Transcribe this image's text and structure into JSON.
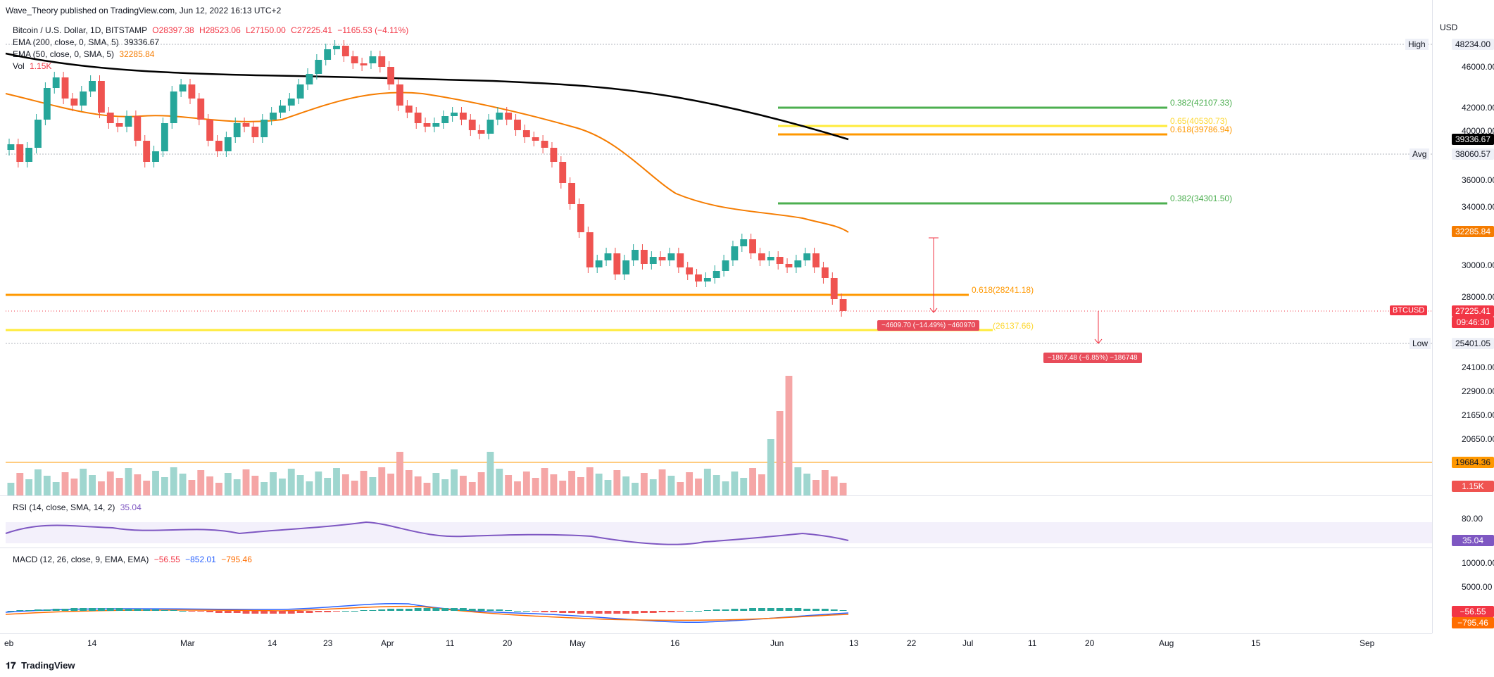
{
  "header": {
    "published": "Wave_Theory published on TradingView.com, Jun 12, 2022 16:13 UTC+2"
  },
  "legend": {
    "symbol": "Bitcoin / U.S. Dollar, 1D, BITSTAMP",
    "o": "O28397.38",
    "h": "H28523.06",
    "l": "L27150.00",
    "c": "C27225.41",
    "chg": "−1165.53 (−4.11%)",
    "ema200_label": "EMA (200, close, 0, SMA, 5)",
    "ema200_value": "39336.67",
    "ema50_label": "EMA (50, close, 0, SMA, 5)",
    "ema50_value": "32285.84",
    "vol_label": "Vol",
    "vol_value": "1.15K"
  },
  "rsi": {
    "label": "RSI (14, close, SMA, 14, 2)",
    "value": "35.04",
    "level_80": "80.00"
  },
  "macd": {
    "label": "MACD (12, 26, close, 9, EMA, EMA)",
    "v1": "−56.55",
    "v2": "−852.01",
    "v3": "−795.46",
    "tick_10000": "10000.00",
    "tick_5000": "5000.00"
  },
  "price_axis": {
    "currency": "USD",
    "ticks": [
      "46000.00",
      "42000.00",
      "40000.00",
      "36000.00",
      "34000.00",
      "30000.00",
      "28000.00",
      "24100.00",
      "22900.00",
      "21650.00",
      "20650.00"
    ],
    "high_label": "High",
    "high_value": "48234.00",
    "avg_label": "Avg",
    "avg_value": "38060.57",
    "low_label": "Low",
    "low_value": "25401.05",
    "ema200_tag": "39336.67",
    "ema50_tag": "32285.84",
    "symbol_tag": "BTCUSD",
    "last_price": "27225.41",
    "countdown": "09:46:30",
    "vol_line_value": "19684.36",
    "vol_tag": "1.15K",
    "rsi_tag": "35.04",
    "macd_tag1": "−56.55",
    "macd_tag2": "−795.46"
  },
  "time_axis": [
    "eb",
    "14",
    "Mar",
    "14",
    "23",
    "Apr",
    "11",
    "20",
    "May",
    "16",
    "Jun",
    "13",
    "22",
    "Jul",
    "11",
    "20",
    "Aug",
    "15",
    "Sep"
  ],
  "annotations": {
    "fib_382_top": "0.382(42107.33)",
    "fib_65": "0.65(40530.73)",
    "fib_618_top": "0.618(39786.94)",
    "fib_382_mid": "0.382(34301.50)",
    "fib_618_mid": "0.618(28241.18)",
    "fib_yellow_low": "(26137.66)",
    "measure1": "−4609.70 (−14.49%) −460970",
    "measure2": "−1867.48 (−6.85%) −186748"
  },
  "footer": {
    "brand": "TradingView"
  },
  "colors": {
    "up": "#26a69a",
    "down": "#ef5350",
    "ema50": "#f57c00",
    "ema200": "#000000",
    "fib_green": "#4caf50",
    "fib_orange": "#ff9800",
    "fib_yellow": "#ffeb3b",
    "rsi": "#7e57c2"
  }
}
